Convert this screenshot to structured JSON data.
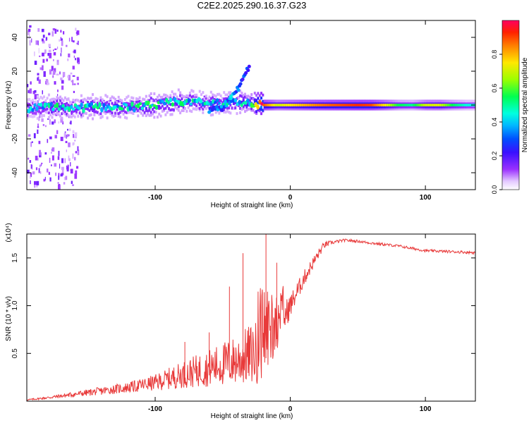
{
  "title": "C2E2.2025.290.16.37.G23",
  "colors": {
    "line": "#e83a3a",
    "axis": "#000000",
    "background": "#ffffff"
  },
  "chart_data": [
    {
      "type": "heatmap",
      "name": "spectrogram",
      "xlabel": "Height of straight line (km)",
      "ylabel": "Frequency (Hz)",
      "xlim": [
        -195,
        137
      ],
      "ylim": [
        -50,
        50
      ],
      "xticks": [
        -100,
        0,
        100
      ],
      "xtick_labels": [
        "-100",
        "0",
        "100"
      ],
      "yticks": [
        -40,
        -20,
        0,
        20,
        40
      ],
      "ytick_labels": [
        "-40",
        "-20",
        "0",
        "20",
        "40"
      ],
      "colorbar": {
        "label": "Normalized spectral amplitude",
        "range": [
          0,
          1
        ],
        "ticks": [
          0.0,
          0.2,
          0.4,
          0.6,
          0.8
        ],
        "tick_labels": [
          "0.0",
          "0.2",
          "0.4",
          "0.6",
          "0.8"
        ]
      },
      "ridge": [
        {
          "x": -190,
          "f": -2,
          "amp": 0.35
        },
        {
          "x": -180,
          "f": -1,
          "amp": 0.4
        },
        {
          "x": -170,
          "f": -1,
          "amp": 0.45
        },
        {
          "x": -160,
          "f": -2,
          "amp": 0.4
        },
        {
          "x": -150,
          "f": -1,
          "amp": 0.45
        },
        {
          "x": -140,
          "f": -1,
          "amp": 0.42
        },
        {
          "x": -130,
          "f": -1,
          "amp": 0.45
        },
        {
          "x": -120,
          "f": -1,
          "amp": 0.4
        },
        {
          "x": -110,
          "f": -1,
          "amp": 0.45
        },
        {
          "x": -100,
          "f": 0,
          "amp": 0.45
        },
        {
          "x": -90,
          "f": 1,
          "amp": 0.42
        },
        {
          "x": -80,
          "f": 2,
          "amp": 0.45
        },
        {
          "x": -70,
          "f": 2,
          "amp": 0.4
        },
        {
          "x": -60,
          "f": 1,
          "amp": 0.42
        },
        {
          "x": -50,
          "f": 1,
          "amp": 0.4
        },
        {
          "x": -40,
          "f": 2,
          "amp": 0.42
        },
        {
          "x": -30,
          "f": 1,
          "amp": 0.5
        },
        {
          "x": -20,
          "f": 0,
          "amp": 0.9
        },
        {
          "x": -10,
          "f": 0,
          "amp": 0.7
        },
        {
          "x": 0,
          "f": 0,
          "amp": 0.75
        },
        {
          "x": 10,
          "f": 0,
          "amp": 0.8
        },
        {
          "x": 20,
          "f": 0,
          "amp": 0.85
        },
        {
          "x": 30,
          "f": 0,
          "amp": 0.88
        },
        {
          "x": 40,
          "f": 0,
          "amp": 0.9
        },
        {
          "x": 50,
          "f": 0,
          "amp": 0.92
        },
        {
          "x": 60,
          "f": 0,
          "amp": 0.9
        },
        {
          "x": 70,
          "f": 0,
          "amp": 0.75
        },
        {
          "x": 80,
          "f": 0,
          "amp": 0.55
        },
        {
          "x": 90,
          "f": 0,
          "amp": 0.5
        },
        {
          "x": 100,
          "f": 0,
          "amp": 0.7
        },
        {
          "x": 110,
          "f": 0,
          "amp": 0.72
        },
        {
          "x": 120,
          "f": 0,
          "amp": 0.55
        },
        {
          "x": 130,
          "f": 0,
          "amp": 0.45
        }
      ],
      "branch": [
        {
          "x": -60,
          "f": -3,
          "amp": 0.35
        },
        {
          "x": -50,
          "f": -2,
          "amp": 0.35
        },
        {
          "x": -45,
          "f": 3,
          "amp": 0.4
        },
        {
          "x": -40,
          "f": 8,
          "amp": 0.35
        },
        {
          "x": -35,
          "f": 15,
          "amp": 0.3
        },
        {
          "x": -30,
          "f": 24,
          "amp": 0.25
        }
      ]
    },
    {
      "type": "line",
      "name": "snr",
      "xlabel": "Height of straight line (km)",
      "ylabel": "SNR (10 * v/v)",
      "scale_label": "(x10⁴)",
      "xlim": [
        -195,
        137
      ],
      "ylim": [
        0,
        1.75
      ],
      "xticks": [
        -100,
        0,
        100
      ],
      "xtick_labels": [
        "-100",
        "0",
        "100"
      ],
      "yticks": [
        0.5,
        1.0,
        1.5
      ],
      "ytick_labels": [
        "0.5",
        "1.0",
        "1.5"
      ],
      "envelope": {
        "x": [
          -195,
          -180,
          -160,
          -140,
          -120,
          -100,
          -80,
          -60,
          -40,
          -30,
          -20,
          -10,
          0,
          10,
          20,
          25,
          30,
          40,
          50,
          60,
          80,
          100,
          120,
          137
        ],
        "y": [
          0.01,
          0.03,
          0.06,
          0.09,
          0.12,
          0.16,
          0.22,
          0.27,
          0.32,
          0.36,
          0.4,
          0.65,
          0.95,
          1.25,
          1.5,
          1.62,
          1.65,
          1.68,
          1.67,
          1.65,
          1.62,
          1.57,
          1.56,
          1.55
        ],
        "spread": [
          0.01,
          0.02,
          0.04,
          0.06,
          0.08,
          0.12,
          0.2,
          0.28,
          0.38,
          0.45,
          0.5,
          0.3,
          0.18,
          0.12,
          0.08,
          0.05,
          0.03,
          0.02,
          0.02,
          0.02,
          0.02,
          0.02,
          0.02,
          0.02
        ]
      },
      "spikes": [
        {
          "x": -18,
          "y": 1.75
        },
        {
          "x": -35,
          "y": 1.55
        },
        {
          "x": -45,
          "y": 1.2
        },
        {
          "x": -78,
          "y": 0.62
        },
        {
          "x": -60,
          "y": 0.72
        },
        {
          "x": -10,
          "y": 1.45
        }
      ]
    }
  ]
}
